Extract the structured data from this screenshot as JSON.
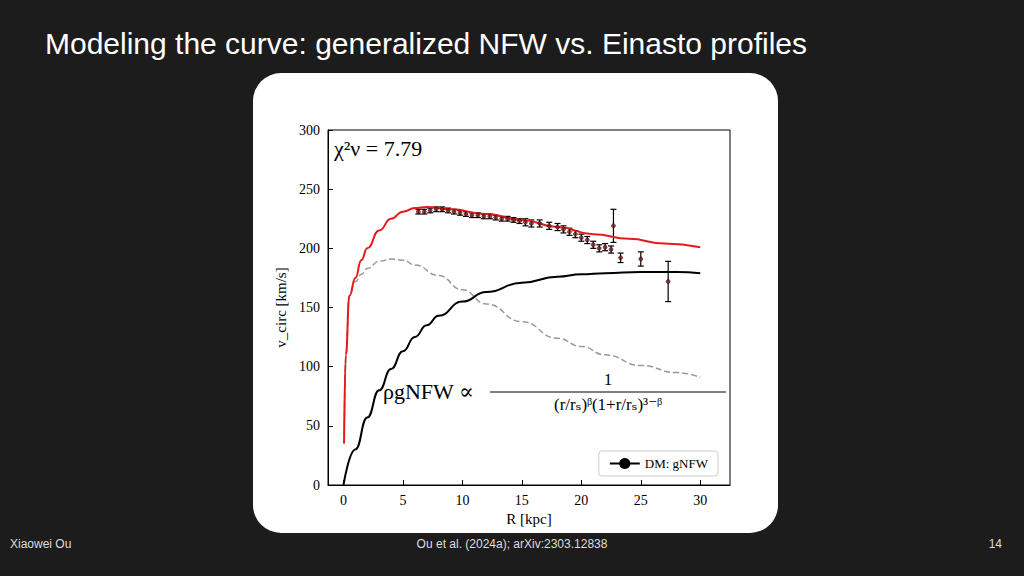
{
  "slide": {
    "title": "Modeling the curve: generalized NFW vs. Einasto profiles",
    "author": "Xiaowei Ou",
    "citation": "Ou et al. (2024a); arXiv:2303.12838",
    "page": 14
  },
  "chart_data": {
    "type": "line",
    "xlabel": "R [kpc]",
    "ylabel": "v_circ [km/s]",
    "annotations": {
      "fit": "χ²ν = 7.79",
      "formula_lhs": "ρgNFW ∝",
      "formula_numerator": "1",
      "formula_denominator": "(r/rₛ)ᵝ(1+r/rₛ)³⁻ᵝ"
    },
    "xlim": [
      -1.3,
      32.5
    ],
    "xticks": [
      0,
      5,
      10,
      15,
      20,
      25,
      30
    ],
    "ylim": [
      0,
      300
    ],
    "yticks": [
      0,
      50,
      100,
      150,
      200,
      250,
      300
    ],
    "grid": false,
    "legend": "lower right",
    "series": [
      {
        "type": "scatter",
        "color": "#8b1a1a",
        "marker": "circle",
        "x": [
          6.3,
          6.8,
          7.3,
          7.8,
          8.3,
          8.8,
          9.3,
          9.8,
          10.3,
          10.8,
          11.3,
          11.8,
          12.3,
          12.8,
          13.3,
          13.8,
          14.3,
          14.8,
          15.3,
          15.8,
          16.5,
          17.3,
          18,
          18.5,
          19,
          19.5,
          20,
          20.5,
          21,
          21.5,
          22,
          22.5,
          22.7,
          23.3,
          25,
          27.3
        ],
        "values": [
          231,
          231,
          232,
          233,
          233,
          232,
          231,
          230,
          229,
          228,
          228,
          227,
          227,
          226,
          225,
          225,
          224,
          223,
          222,
          221,
          221,
          219,
          218,
          216,
          214,
          212,
          209,
          207,
          203,
          200,
          201,
          199,
          219,
          192,
          191,
          172
        ],
        "errors": [
          2,
          2,
          2,
          2,
          2,
          2,
          2,
          2,
          2,
          2,
          2,
          2,
          2,
          2,
          2,
          2,
          2,
          2,
          3,
          3,
          3,
          3,
          3,
          3,
          3,
          3,
          3,
          3,
          3,
          3,
          3,
          3,
          14,
          4,
          6,
          17
        ]
      },
      {
        "type": "line",
        "color": "#e41a1c",
        "line_style": "solid",
        "x": [
          0.05,
          0.2,
          0.5,
          1,
          1.5,
          2,
          3,
          4,
          5,
          6,
          7,
          9,
          12,
          15,
          18,
          21,
          24,
          27,
          30
        ],
        "values": [
          35,
          110,
          160,
          175,
          190,
          200,
          215,
          225,
          231,
          234,
          235,
          233,
          229,
          224,
          218,
          212,
          208,
          204,
          201
        ]
      },
      {
        "type": "line",
        "color": "#999999",
        "line_style": "dashed",
        "x": [
          0.05,
          0.2,
          0.5,
          1,
          1.5,
          2,
          3,
          4,
          5,
          6,
          8,
          10,
          12,
          15,
          18,
          20,
          22,
          25,
          28,
          30
        ],
        "values": [
          35,
          110,
          160,
          172,
          178,
          183,
          189,
          191,
          190,
          186,
          177,
          165,
          153,
          138,
          124,
          117,
          110,
          101,
          95,
          91
        ]
      },
      {
        "name": "DM: gNFW",
        "type": "line",
        "color": "#000000",
        "line_style": "solid",
        "x": [
          0,
          1,
          2,
          3,
          4,
          5,
          6,
          7,
          8,
          10,
          12,
          15,
          18,
          20,
          22,
          25,
          28,
          30
        ],
        "values": [
          0,
          30,
          57,
          80,
          98,
          113,
          125,
          135,
          143,
          155,
          163,
          171,
          176,
          178,
          179,
          180,
          180,
          179
        ]
      }
    ]
  }
}
